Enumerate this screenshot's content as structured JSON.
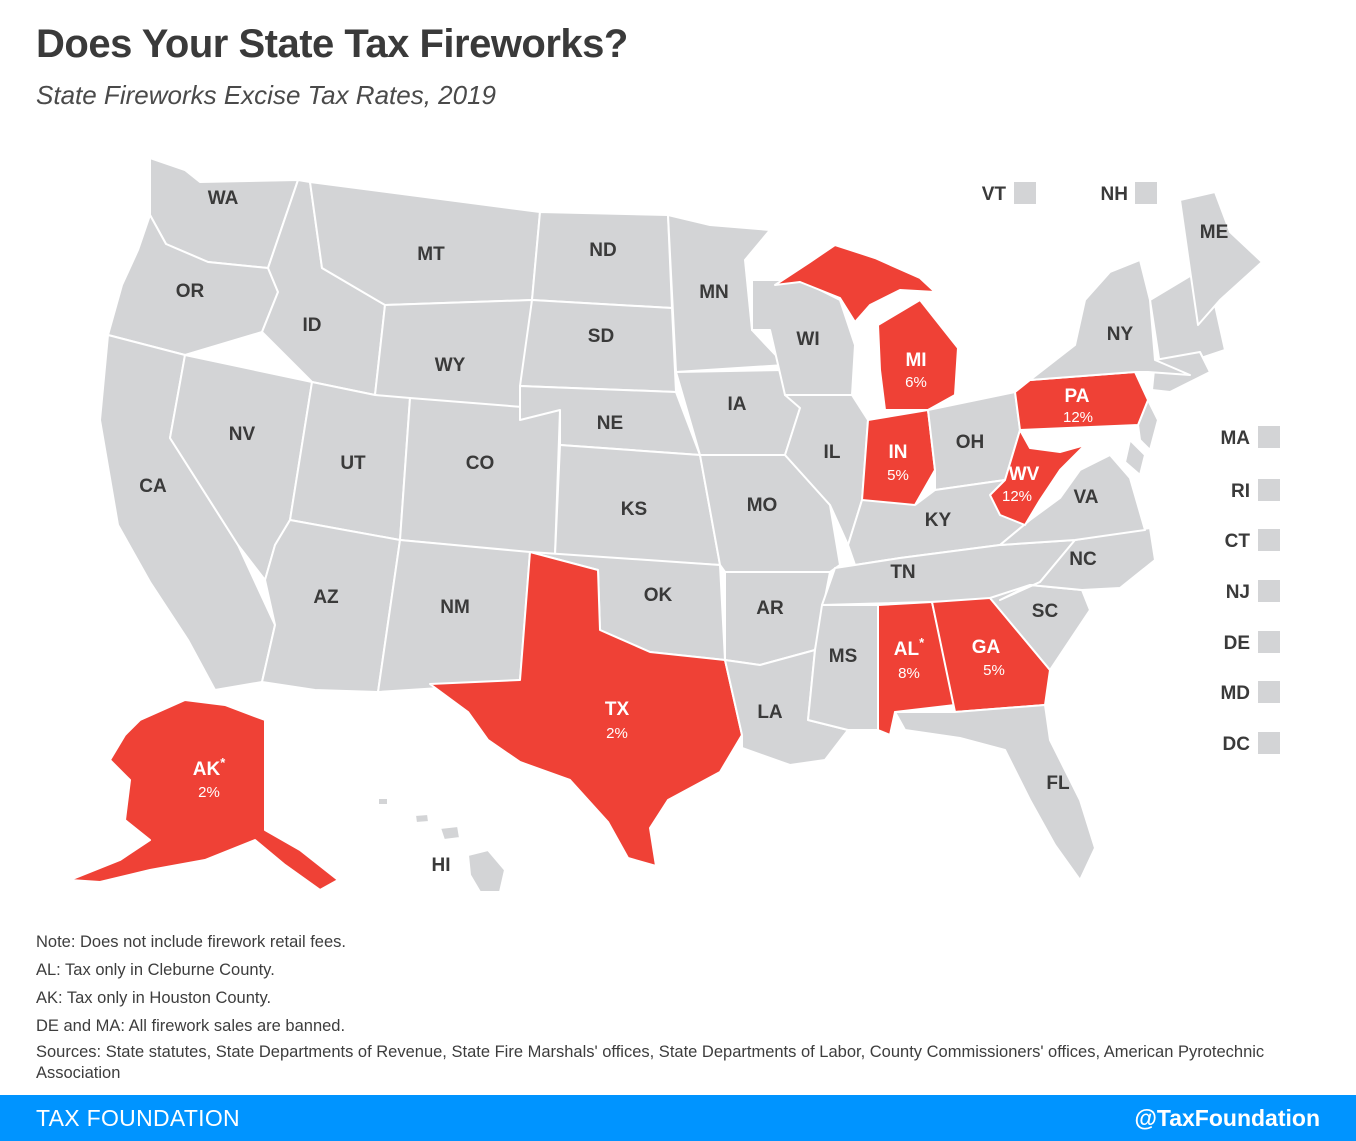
{
  "title": "Does Your State Tax Fireworks?",
  "subtitle": "State Fireworks Excise Tax Rates, 2019",
  "colors": {
    "taxed": "#ef4136",
    "untaxed": "#d3d4d6",
    "label_dark": "#3a3a3a",
    "label_light": "#ffffff",
    "footer": "#0094ff"
  },
  "states": [
    {
      "abbr": "WA",
      "rate": ""
    },
    {
      "abbr": "OR",
      "rate": ""
    },
    {
      "abbr": "CA",
      "rate": ""
    },
    {
      "abbr": "NV",
      "rate": ""
    },
    {
      "abbr": "ID",
      "rate": ""
    },
    {
      "abbr": "MT",
      "rate": ""
    },
    {
      "abbr": "WY",
      "rate": ""
    },
    {
      "abbr": "UT",
      "rate": ""
    },
    {
      "abbr": "AZ",
      "rate": ""
    },
    {
      "abbr": "CO",
      "rate": ""
    },
    {
      "abbr": "NM",
      "rate": ""
    },
    {
      "abbr": "ND",
      "rate": ""
    },
    {
      "abbr": "SD",
      "rate": ""
    },
    {
      "abbr": "NE",
      "rate": ""
    },
    {
      "abbr": "KS",
      "rate": ""
    },
    {
      "abbr": "OK",
      "rate": ""
    },
    {
      "abbr": "TX",
      "rate": "2%"
    },
    {
      "abbr": "MN",
      "rate": ""
    },
    {
      "abbr": "IA",
      "rate": ""
    },
    {
      "abbr": "MO",
      "rate": ""
    },
    {
      "abbr": "AR",
      "rate": ""
    },
    {
      "abbr": "LA",
      "rate": ""
    },
    {
      "abbr": "WI",
      "rate": ""
    },
    {
      "abbr": "IL",
      "rate": ""
    },
    {
      "abbr": "MI",
      "rate": "6%"
    },
    {
      "abbr": "IN",
      "rate": "5%"
    },
    {
      "abbr": "OH",
      "rate": ""
    },
    {
      "abbr": "KY",
      "rate": ""
    },
    {
      "abbr": "TN",
      "rate": ""
    },
    {
      "abbr": "MS",
      "rate": ""
    },
    {
      "abbr": "AL",
      "rate": "8%",
      "asterisk": "*"
    },
    {
      "abbr": "GA",
      "rate": "5%"
    },
    {
      "abbr": "FL",
      "rate": ""
    },
    {
      "abbr": "SC",
      "rate": ""
    },
    {
      "abbr": "NC",
      "rate": ""
    },
    {
      "abbr": "VA",
      "rate": ""
    },
    {
      "abbr": "WV",
      "rate": "12%"
    },
    {
      "abbr": "PA",
      "rate": "12%"
    },
    {
      "abbr": "NY",
      "rate": ""
    },
    {
      "abbr": "ME",
      "rate": ""
    },
    {
      "abbr": "AK",
      "rate": "2%",
      "asterisk": "*"
    },
    {
      "abbr": "HI",
      "rate": ""
    }
  ],
  "small_states": [
    {
      "abbr": "VT",
      "rate": ""
    },
    {
      "abbr": "NH",
      "rate": ""
    },
    {
      "abbr": "MA",
      "rate": ""
    },
    {
      "abbr": "RI",
      "rate": ""
    },
    {
      "abbr": "CT",
      "rate": ""
    },
    {
      "abbr": "NJ",
      "rate": ""
    },
    {
      "abbr": "DE",
      "rate": ""
    },
    {
      "abbr": "MD",
      "rate": ""
    },
    {
      "abbr": "DC",
      "rate": ""
    }
  ],
  "notes": [
    "Note: Does not include firework retail fees.",
    "AL: Tax only in Cleburne County.",
    "AK: Tax only in Houston County.",
    "DE and MA: All firework sales are banned."
  ],
  "sources": "Sources: State statutes, State Departments of Revenue, State Fire Marshals' offices, State Departments of Labor, County Commissioners' offices, American Pyrotechnic Association",
  "footer": {
    "brand": "TAX FOUNDATION",
    "handle": "@TaxFoundation"
  }
}
